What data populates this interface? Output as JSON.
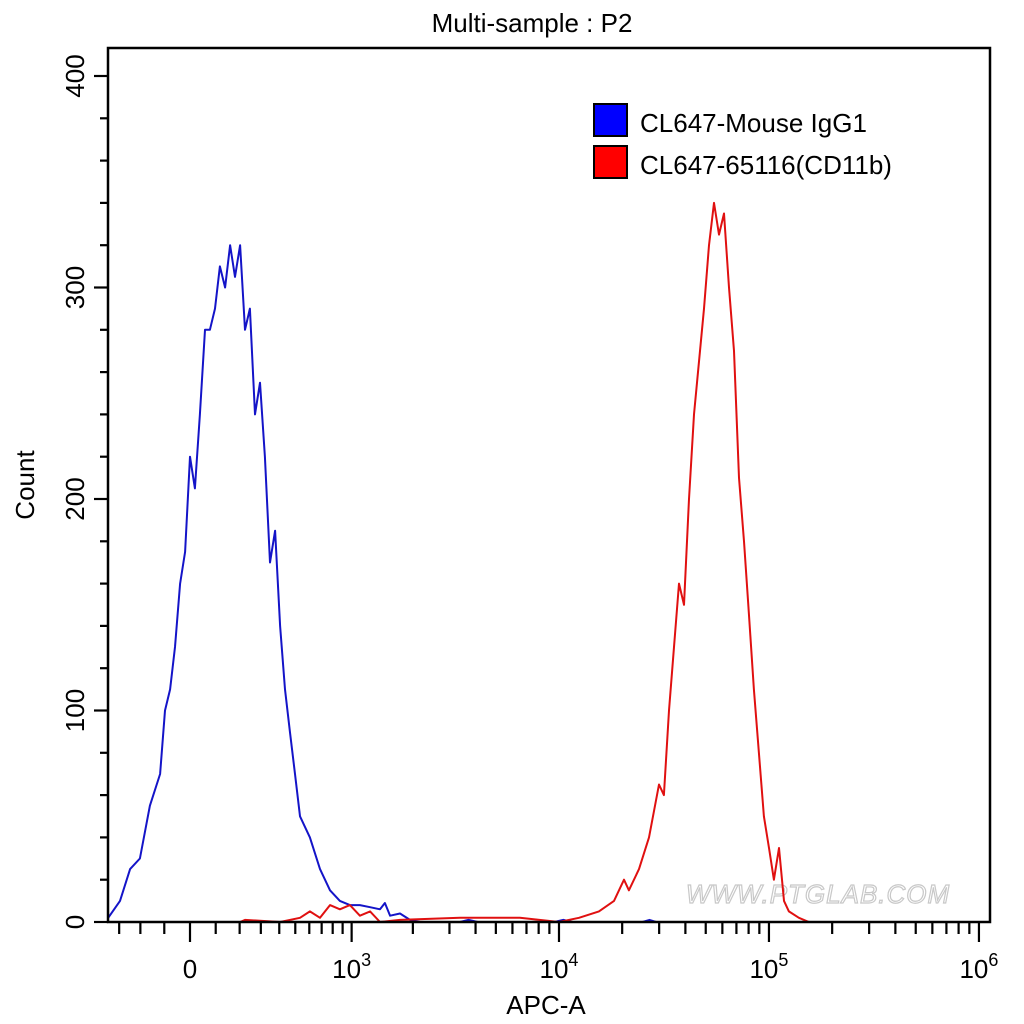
{
  "chart_data": {
    "type": "line",
    "title": "Multi-sample : P2",
    "xlabel": "APC-A",
    "ylabel": "Count",
    "x_scale": "biexponential",
    "xlim": [
      -360,
      1000000
    ],
    "ylim": [
      0,
      400
    ],
    "x_tick_labels": [
      {
        "value": 0,
        "base": "0",
        "exp": ""
      },
      {
        "value": 1000,
        "base": "10",
        "exp": "3"
      },
      {
        "value": 10000,
        "base": "10",
        "exp": "4"
      },
      {
        "value": 100000,
        "base": "10",
        "exp": "5"
      },
      {
        "value": 1000000,
        "base": "10",
        "exp": "6"
      }
    ],
    "y_ticks": [
      0,
      100,
      200,
      300,
      400
    ],
    "grid": false,
    "legend_placement": "top-right",
    "watermark": "WWW.PTGLAB.COM",
    "series": [
      {
        "name": "CL647-Mouse IgG1",
        "color": "#1414c8",
        "legend_color": "#0000ff",
        "x": [
          -358,
          -296,
          -247,
          -202,
          -159,
          -117,
          -97,
          -77,
          -58,
          -38,
          -19,
          0,
          19,
          38,
          58,
          77,
          97,
          117,
          138,
          159,
          180,
          202,
          224,
          247,
          271,
          296,
          321,
          348,
          376,
          405,
          434,
          465,
          498,
          532,
          605,
          686,
          775,
          872,
          980,
          1100,
          1236,
          1383,
          1462,
          1550,
          1733,
          1937,
          2165,
          3370,
          3700,
          4100,
          9500,
          10500,
          11500,
          25000,
          27000,
          29000,
          40000
        ],
        "y": [
          2,
          10,
          25,
          30,
          55,
          70,
          100,
          110,
          130,
          160,
          175,
          220,
          205,
          240,
          280,
          280,
          290,
          310,
          300,
          320,
          305,
          320,
          280,
          290,
          240,
          255,
          220,
          170,
          185,
          140,
          110,
          90,
          70,
          50,
          40,
          25,
          15,
          10,
          8,
          8,
          7,
          6,
          9,
          3,
          4,
          1,
          0,
          0,
          1,
          0,
          0,
          1,
          0,
          0,
          1,
          0,
          0
        ]
      },
      {
        "name": "CL647-65116(CD11b)",
        "color": "#e01010",
        "legend_color": "#ff0000",
        "x": [
          202,
          224,
          405,
          532,
          605,
          686,
          775,
          872,
          980,
          1100,
          1236,
          1383,
          1733,
          3370,
          6510,
          10000,
          12450,
          15490,
          18290,
          20400,
          21540,
          24040,
          26830,
          29940,
          31620,
          33410,
          35290,
          37280,
          39380,
          41600,
          43940,
          46420,
          49040,
          51800,
          54720,
          57800,
          61060,
          64500,
          68130,
          71970,
          76030,
          80310,
          84830,
          89610,
          94660,
          100000,
          105600,
          111600,
          117900,
          124500,
          138900,
          155000
        ],
        "y": [
          0,
          1,
          0,
          2,
          5,
          2,
          8,
          6,
          8,
          3,
          5,
          0,
          1,
          2,
          2,
          0,
          2,
          5,
          10,
          20,
          15,
          25,
          40,
          65,
          60,
          100,
          130,
          160,
          150,
          200,
          240,
          265,
          290,
          320,
          340,
          325,
          335,
          300,
          270,
          210,
          180,
          145,
          110,
          80,
          50,
          35,
          20,
          35,
          10,
          5,
          2,
          0
        ]
      }
    ]
  }
}
